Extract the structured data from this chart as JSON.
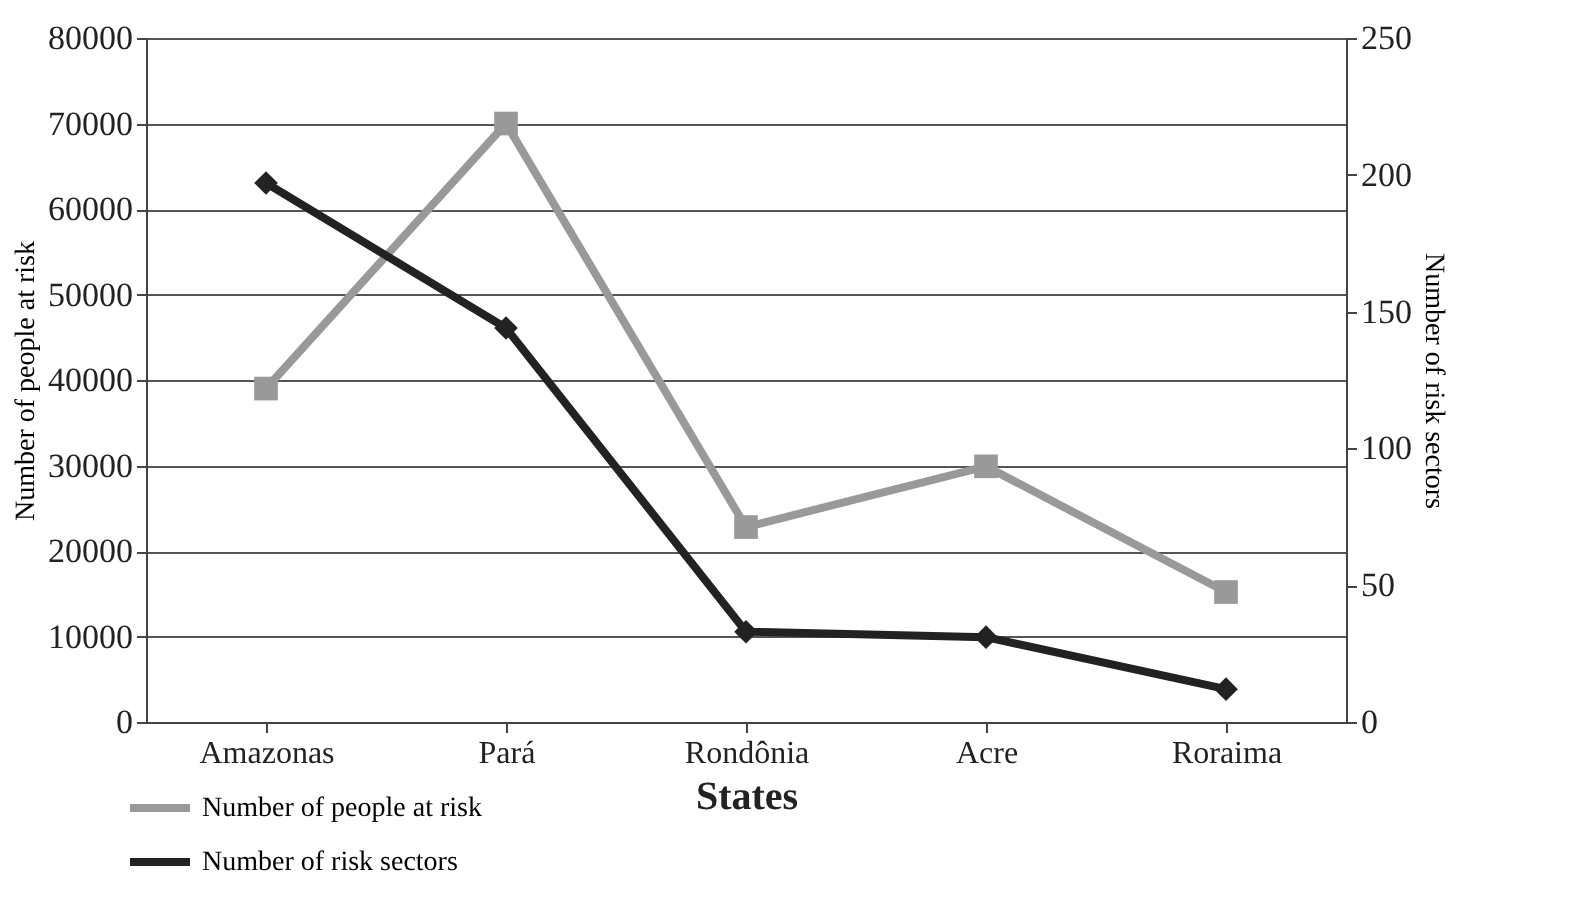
{
  "chart_data": {
    "type": "line",
    "xlabel": "States",
    "ylabel": "Number of people at risk",
    "y2label": "Number of risk sectors",
    "categories": [
      "Amazonas",
      "Pará",
      "Rondônia",
      "Acre",
      "Roraima"
    ],
    "series": [
      {
        "name": "Number of people at risk",
        "color": "#999999",
        "marker": "square",
        "values": [
          39000,
          70000,
          22800,
          29900,
          15200
        ]
      },
      {
        "name": "Number of risk sectors",
        "color": "#222222",
        "marker": "diamond",
        "axis": "y2",
        "values": [
          197,
          144,
          33,
          31,
          12
        ]
      }
    ],
    "ylim": [
      0,
      80000
    ],
    "yticks": [
      0,
      10000,
      20000,
      30000,
      40000,
      50000,
      60000,
      70000,
      80000
    ],
    "y2lim": [
      0,
      250
    ],
    "y2ticks": [
      0,
      50,
      100,
      150,
      200,
      250
    ],
    "grid": "y",
    "legend": "bottom left",
    "line_style": "solid"
  }
}
